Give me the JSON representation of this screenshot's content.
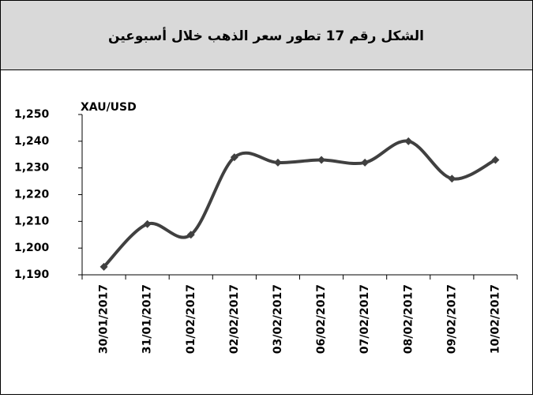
{
  "chart_data": {
    "type": "line",
    "title": "الشكل رقم 17 تطور سعر الذهب خلال أسبوعين",
    "y_label": "XAU/USD",
    "categories": [
      "30/01/2017",
      "31/01/2017",
      "01/02/2017",
      "02/02/2017",
      "03/02/2017",
      "06/02/2017",
      "07/02/2017",
      "08/02/2017",
      "09/02/2017",
      "10/02/2017"
    ],
    "values": [
      1193,
      1209,
      1205,
      1234,
      1232,
      1233,
      1232,
      1240,
      1226,
      1233
    ],
    "color": "#404040",
    "ylim": [
      1190,
      1250
    ],
    "yticks": [
      {
        "value": 1190,
        "label": "1,190"
      },
      {
        "value": 1200,
        "label": "1,200"
      },
      {
        "value": 1210,
        "label": "1,210"
      },
      {
        "value": 1220,
        "label": "1,220"
      },
      {
        "value": 1230,
        "label": "1,230"
      },
      {
        "value": 1240,
        "label": "1,240"
      },
      {
        "value": 1250,
        "label": "1,250"
      }
    ],
    "grid": false,
    "smooth": true
  }
}
